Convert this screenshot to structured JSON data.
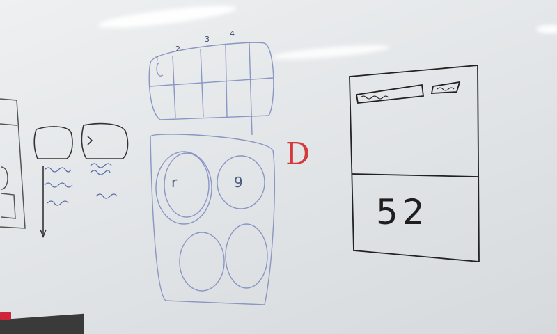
{
  "board": {
    "big_number": "52",
    "red_letter": "D",
    "ring_letters": [
      "r",
      "9"
    ],
    "cell_numbers": [
      "1",
      "2",
      "3",
      "4"
    ],
    "colors": {
      "board": "#e6e8ea",
      "black_marker": "#222222",
      "blue_marker": "#7a86b8",
      "red_marker": "#d53a3a"
    }
  }
}
